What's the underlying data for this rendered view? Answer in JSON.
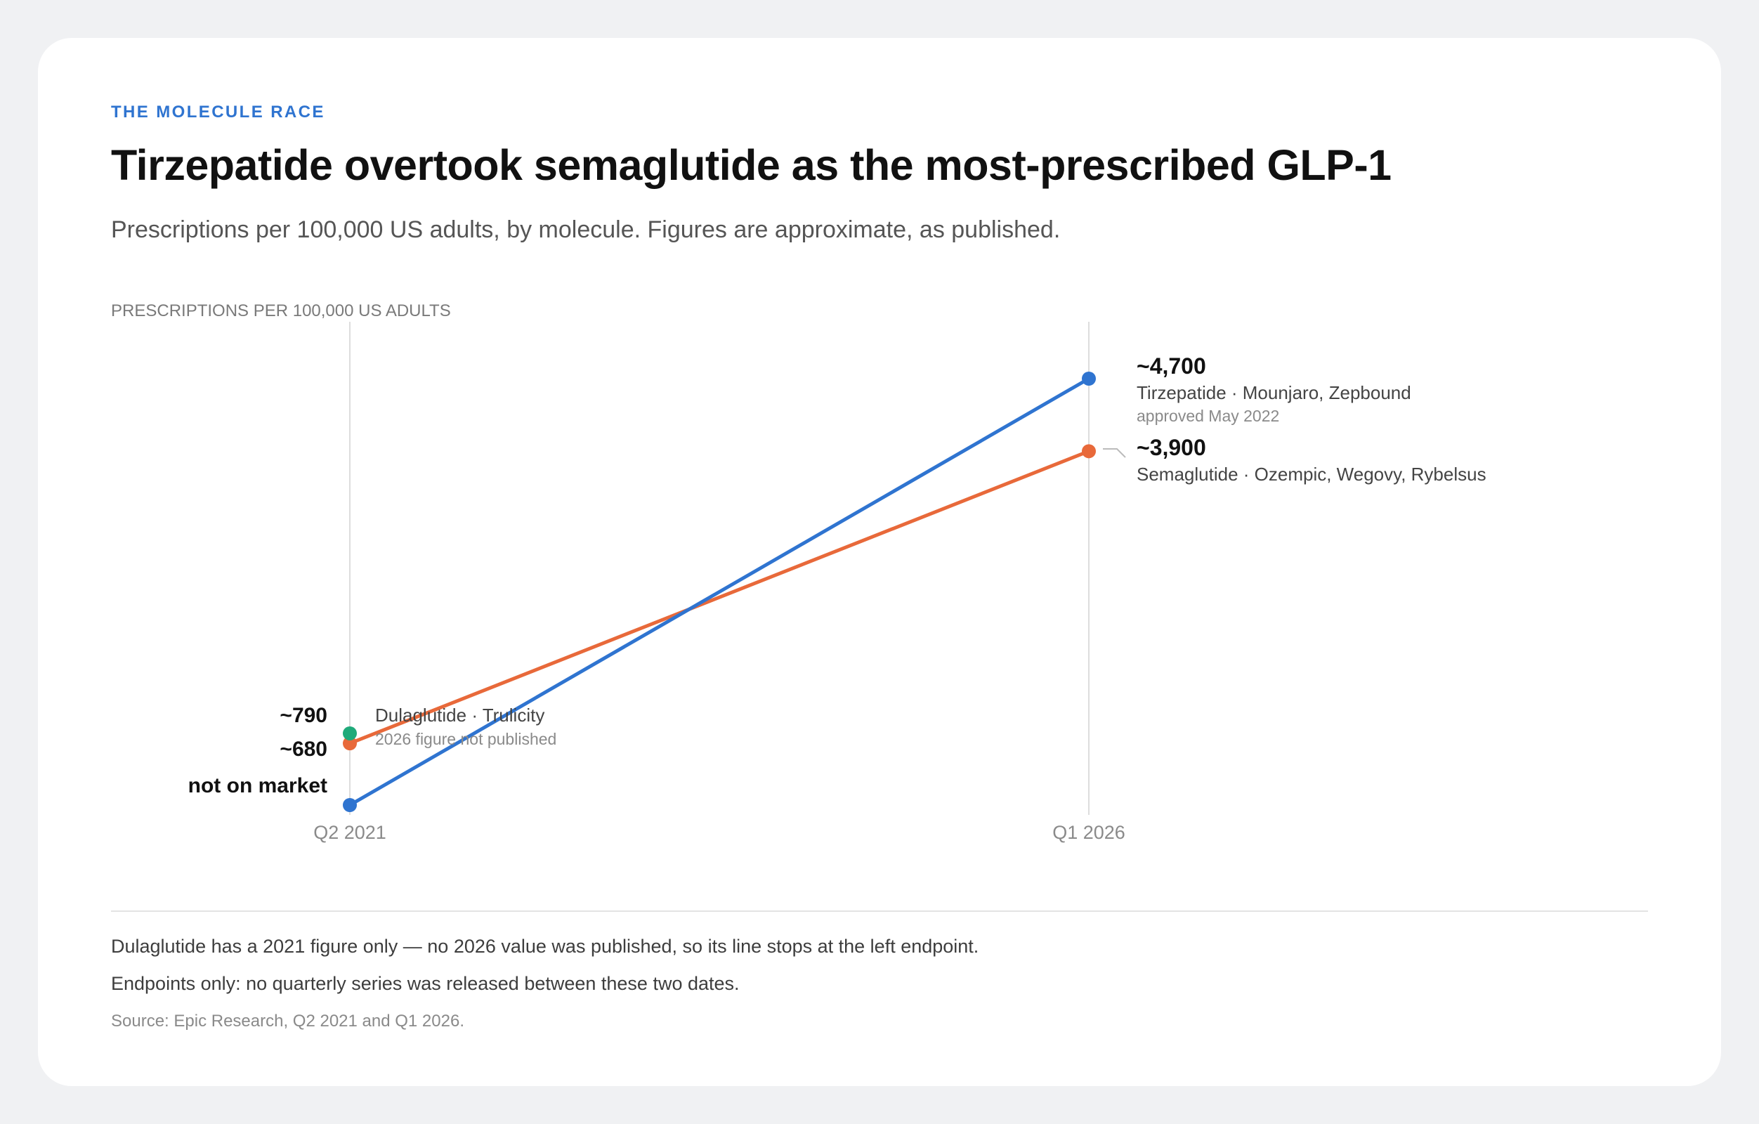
{
  "header": {
    "kicker": "THE MOLECULE RACE",
    "title": "Tirzepatide overtook semaglutide as the most-prescribed GLP-1",
    "subtitle": "Prescriptions per 100,000 US adults, by molecule. Figures are approximate, as published."
  },
  "colors": {
    "tirzepatide": "#2f74d0",
    "semaglutide": "#e8693a",
    "dulaglutide": "#1faa7a",
    "gridline": "#dddddd",
    "axis_text": "#8a8a8a"
  },
  "chart_data": {
    "type": "line",
    "ylabel": "PRESCRIPTIONS PER 100,000 US ADULTS",
    "x": [
      "Q2 2021",
      "Q1 2026"
    ],
    "grid": "vertical lines at each endpoint",
    "series": [
      {
        "key": "tirzepatide",
        "name": "Tirzepatide · Mounjaro, Zepbound",
        "note": "approved May 2022",
        "values": [
          0,
          4700
        ],
        "labels": [
          "not on market",
          "~4,700"
        ]
      },
      {
        "key": "semaglutide",
        "name": "Semaglutide · Ozempic, Wegovy, Rybelsus",
        "values": [
          680,
          3900
        ],
        "labels": [
          "~680",
          "~3,900"
        ]
      },
      {
        "key": "dulaglutide",
        "name": "Dulaglutide · Trulicity",
        "note": "2026 figure not published",
        "values": [
          790,
          null
        ],
        "labels": [
          "~790",
          ""
        ]
      }
    ]
  },
  "footer": {
    "note1": "Dulaglutide has a 2021 figure only — no 2026 value was published, so its line stops at the left endpoint.",
    "note2": "Endpoints only: no quarterly series was released between these two dates.",
    "source": "Source: Epic Research, Q2 2021 and Q1 2026."
  }
}
